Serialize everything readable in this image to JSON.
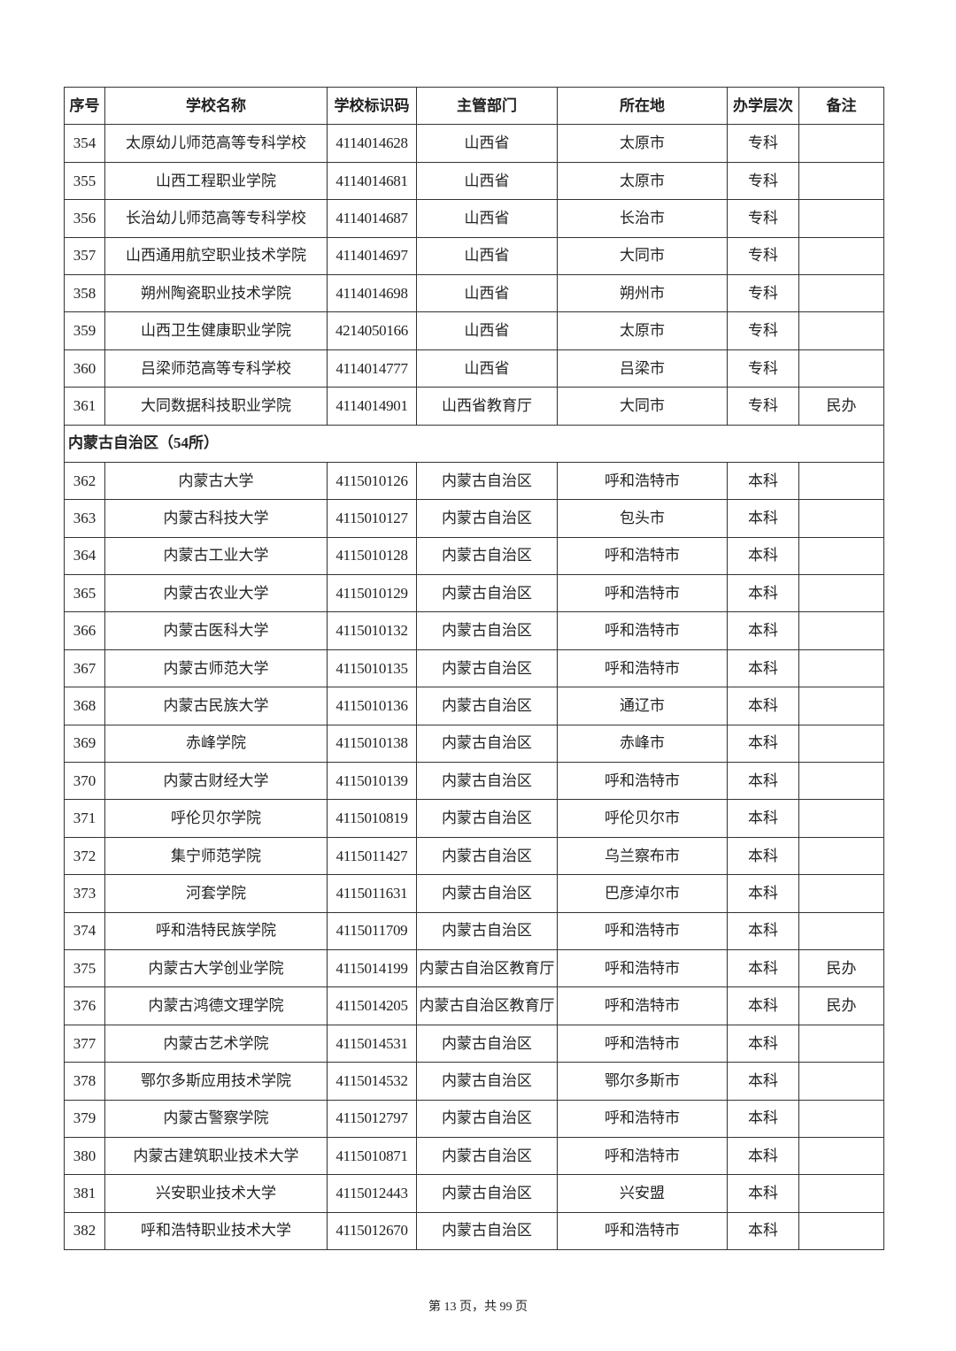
{
  "headers": [
    "序号",
    "学校名称",
    "学校标识码",
    "主管部门",
    "所在地",
    "办学层次",
    "备注"
  ],
  "rows_a": [
    [
      "354",
      "太原幼儿师范高等专科学校",
      "4114014628",
      "山西省",
      "太原市",
      "专科",
      ""
    ],
    [
      "355",
      "山西工程职业学院",
      "4114014681",
      "山西省",
      "太原市",
      "专科",
      ""
    ],
    [
      "356",
      "长治幼儿师范高等专科学校",
      "4114014687",
      "山西省",
      "长治市",
      "专科",
      ""
    ],
    [
      "357",
      "山西通用航空职业技术学院",
      "4114014697",
      "山西省",
      "大同市",
      "专科",
      ""
    ],
    [
      "358",
      "朔州陶瓷职业技术学院",
      "4114014698",
      "山西省",
      "朔州市",
      "专科",
      ""
    ],
    [
      "359",
      "山西卫生健康职业学院",
      "4214050166",
      "山西省",
      "太原市",
      "专科",
      ""
    ],
    [
      "360",
      "吕梁师范高等专科学校",
      "4114014777",
      "山西省",
      "吕梁市",
      "专科",
      ""
    ],
    [
      "361",
      "大同数据科技职业学院",
      "4114014901",
      "山西省教育厅",
      "大同市",
      "专科",
      "民办"
    ]
  ],
  "section": "内蒙古自治区（54所）",
  "rows_b": [
    [
      "362",
      "内蒙古大学",
      "4115010126",
      "内蒙古自治区",
      "呼和浩特市",
      "本科",
      ""
    ],
    [
      "363",
      "内蒙古科技大学",
      "4115010127",
      "内蒙古自治区",
      "包头市",
      "本科",
      ""
    ],
    [
      "364",
      "内蒙古工业大学",
      "4115010128",
      "内蒙古自治区",
      "呼和浩特市",
      "本科",
      ""
    ],
    [
      "365",
      "内蒙古农业大学",
      "4115010129",
      "内蒙古自治区",
      "呼和浩特市",
      "本科",
      ""
    ],
    [
      "366",
      "内蒙古医科大学",
      "4115010132",
      "内蒙古自治区",
      "呼和浩特市",
      "本科",
      ""
    ],
    [
      "367",
      "内蒙古师范大学",
      "4115010135",
      "内蒙古自治区",
      "呼和浩特市",
      "本科",
      ""
    ],
    [
      "368",
      "内蒙古民族大学",
      "4115010136",
      "内蒙古自治区",
      "通辽市",
      "本科",
      ""
    ],
    [
      "369",
      "赤峰学院",
      "4115010138",
      "内蒙古自治区",
      "赤峰市",
      "本科",
      ""
    ],
    [
      "370",
      "内蒙古财经大学",
      "4115010139",
      "内蒙古自治区",
      "呼和浩特市",
      "本科",
      ""
    ],
    [
      "371",
      "呼伦贝尔学院",
      "4115010819",
      "内蒙古自治区",
      "呼伦贝尔市",
      "本科",
      ""
    ],
    [
      "372",
      "集宁师范学院",
      "4115011427",
      "内蒙古自治区",
      "乌兰察布市",
      "本科",
      ""
    ],
    [
      "373",
      "河套学院",
      "4115011631",
      "内蒙古自治区",
      "巴彦淖尔市",
      "本科",
      ""
    ],
    [
      "374",
      "呼和浩特民族学院",
      "4115011709",
      "内蒙古自治区",
      "呼和浩特市",
      "本科",
      ""
    ],
    [
      "375",
      "内蒙古大学创业学院",
      "4115014199",
      "内蒙古自治区教育厅",
      "呼和浩特市",
      "本科",
      "民办"
    ],
    [
      "376",
      "内蒙古鸿德文理学院",
      "4115014205",
      "内蒙古自治区教育厅",
      "呼和浩特市",
      "本科",
      "民办"
    ],
    [
      "377",
      "内蒙古艺术学院",
      "4115014531",
      "内蒙古自治区",
      "呼和浩特市",
      "本科",
      ""
    ],
    [
      "378",
      "鄂尔多斯应用技术学院",
      "4115014532",
      "内蒙古自治区",
      "鄂尔多斯市",
      "本科",
      ""
    ],
    [
      "379",
      "内蒙古警察学院",
      "4115012797",
      "内蒙古自治区",
      "呼和浩特市",
      "本科",
      ""
    ],
    [
      "380",
      "内蒙古建筑职业技术大学",
      "4115010871",
      "内蒙古自治区",
      "呼和浩特市",
      "本科",
      ""
    ],
    [
      "381",
      "兴安职业技术大学",
      "4115012443",
      "内蒙古自治区",
      "兴安盟",
      "本科",
      ""
    ],
    [
      "382",
      "呼和浩特职业技术大学",
      "4115012670",
      "内蒙古自治区",
      "呼和浩特市",
      "本科",
      ""
    ]
  ],
  "footer": "第 13 页，共 99 页"
}
